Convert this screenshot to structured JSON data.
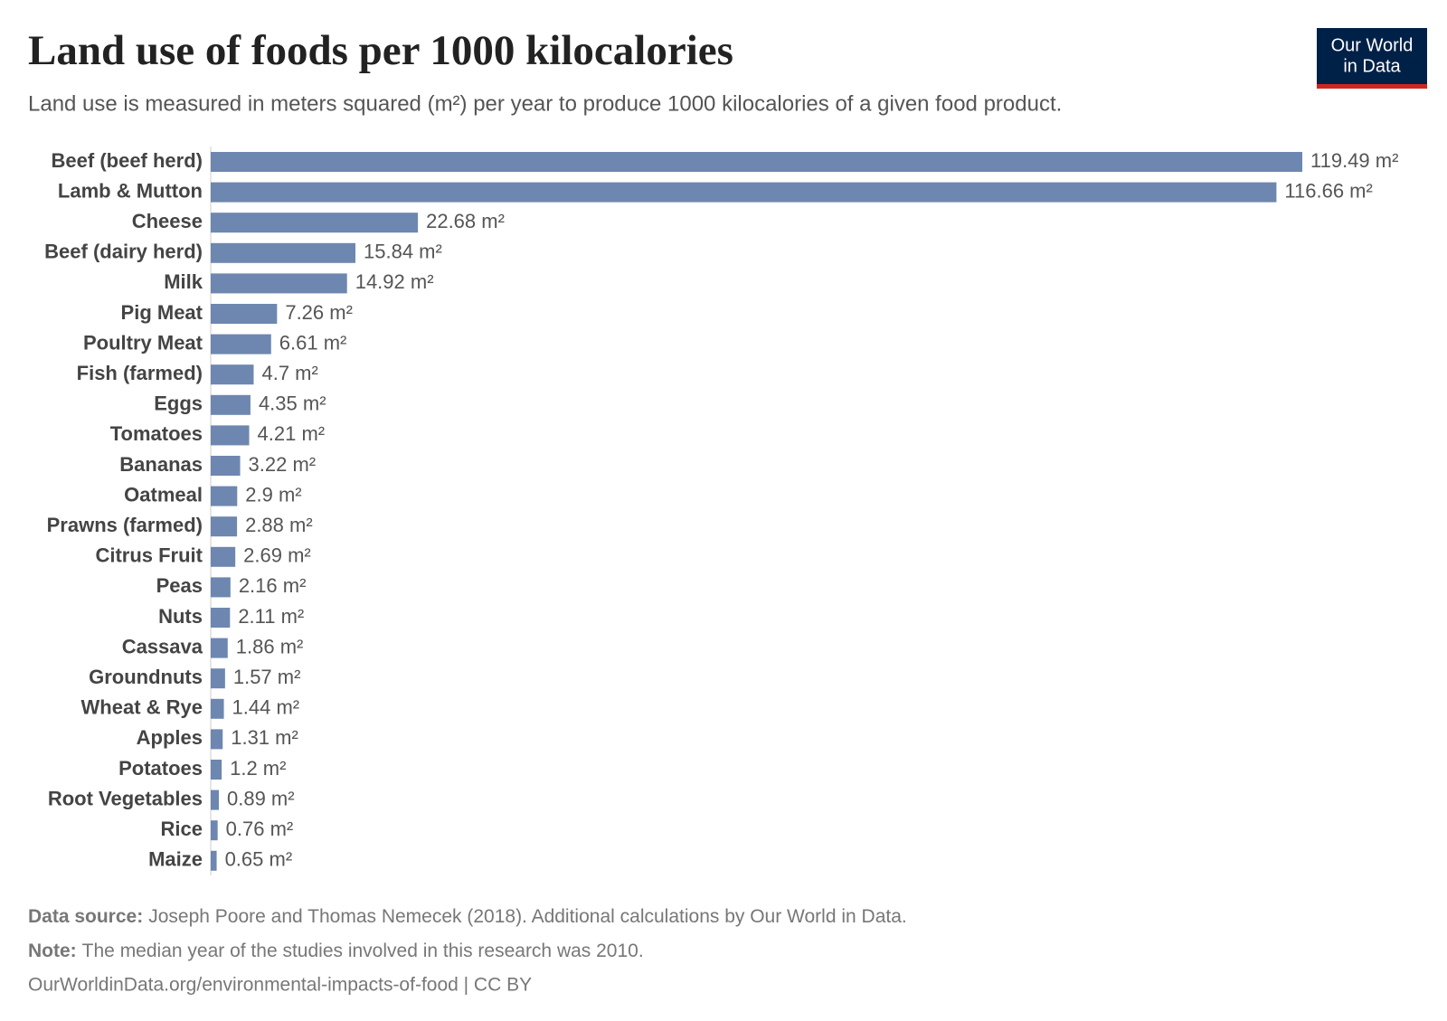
{
  "chart_data": {
    "type": "bar",
    "orientation": "horizontal",
    "title": "Land use of foods per 1000 kilocalories",
    "subtitle": "Land use is measured in meters squared (m²) per year to produce 1000 kilocalories of a given food product.",
    "color": "#6d87b0",
    "categories": [
      "Beef (beef herd)",
      "Lamb & Mutton",
      "Cheese",
      "Beef (dairy herd)",
      "Milk",
      "Pig Meat",
      "Poultry Meat",
      "Fish (farmed)",
      "Eggs",
      "Tomatoes",
      "Bananas",
      "Oatmeal",
      "Prawns (farmed)",
      "Citrus Fruit",
      "Peas",
      "Nuts",
      "Cassava",
      "Groundnuts",
      "Wheat & Rye",
      "Apples",
      "Potatoes",
      "Root Vegetables",
      "Rice",
      "Maize"
    ],
    "values": [
      119.49,
      116.66,
      22.68,
      15.84,
      14.92,
      7.26,
      6.61,
      4.7,
      4.35,
      4.21,
      3.22,
      2.9,
      2.88,
      2.69,
      2.16,
      2.11,
      1.86,
      1.57,
      1.44,
      1.31,
      1.2,
      0.89,
      0.76,
      0.65
    ],
    "value_labels": [
      "119.49 m²",
      "116.66 m²",
      "22.68 m²",
      "15.84 m²",
      "14.92 m²",
      "7.26 m²",
      "6.61 m²",
      "4.7 m²",
      "4.35 m²",
      "4.21 m²",
      "3.22 m²",
      "2.9 m²",
      "2.88 m²",
      "2.69 m²",
      "2.16 m²",
      "2.11 m²",
      "1.86 m²",
      "1.57 m²",
      "1.44 m²",
      "1.31 m²",
      "1.2 m²",
      "0.89 m²",
      "0.76 m²",
      "0.65 m²"
    ],
    "source_label": "Data source:",
    "source": "Joseph Poore and Thomas Nemecek (2018). Additional calculations by Our World in Data.",
    "note_label": "Note:",
    "note": "The median year of the studies involved in this research was 2010.",
    "url": "OurWorldinData.org/environmental-impacts-of-food | CC BY",
    "logo": [
      "Our World",
      "in Data"
    ]
  }
}
